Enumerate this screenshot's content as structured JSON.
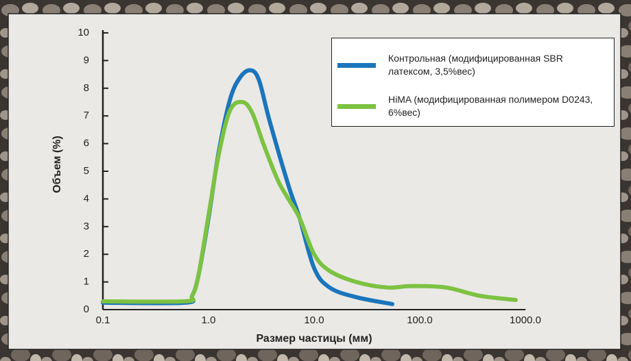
{
  "chart_data": {
    "type": "line",
    "xlabel": "Размер частицы (мм)",
    "ylabel": "Объем (%)",
    "log_x": true,
    "xlim": [
      0.1,
      1000
    ],
    "xticks": [
      0.1,
      {
        "value": 1,
        "label": "1.0"
      },
      {
        "value": 10,
        "label": "10.0"
      },
      {
        "value": 100,
        "label": "100.0"
      },
      {
        "value": 1000,
        "label": "1000.0"
      }
    ],
    "ylim": [
      0,
      10
    ],
    "yticks": [
      0,
      1,
      2,
      3,
      4,
      5,
      6,
      7,
      8,
      9,
      10
    ],
    "legend": "upper right",
    "series": [
      {
        "name": "Контрольная (модифицированная SBR латексом, 3,5%вес)",
        "color": "#1a75bc",
        "x": [
          0.1,
          0.6,
          0.7,
          0.8,
          1.0,
          1.25,
          1.6,
          2.0,
          2.5,
          3.0,
          3.8,
          5.7,
          7.3,
          10,
          14,
          25,
          55
        ],
        "values": [
          0.25,
          0.25,
          0.5,
          1.2,
          3.3,
          5.7,
          7.6,
          8.4,
          8.65,
          8.3,
          6.8,
          4.5,
          3.3,
          1.5,
          0.8,
          0.45,
          0.2
        ]
      },
      {
        "name": "HiMA (модифицированная полимером D0243, 6%вес)",
        "color": "#7dc242",
        "x": [
          0.1,
          0.6,
          0.7,
          0.8,
          1.0,
          1.25,
          1.6,
          2.1,
          2.6,
          3.3,
          4.5,
          5.7,
          7.3,
          10,
          14,
          25,
          49,
          83,
          177,
          370,
          810
        ],
        "values": [
          0.3,
          0.3,
          0.5,
          1.2,
          3.4,
          5.6,
          7.2,
          7.5,
          7.1,
          6.0,
          4.7,
          4.0,
          3.3,
          2.0,
          1.4,
          1.0,
          0.8,
          0.85,
          0.8,
          0.5,
          0.35
        ]
      }
    ]
  }
}
